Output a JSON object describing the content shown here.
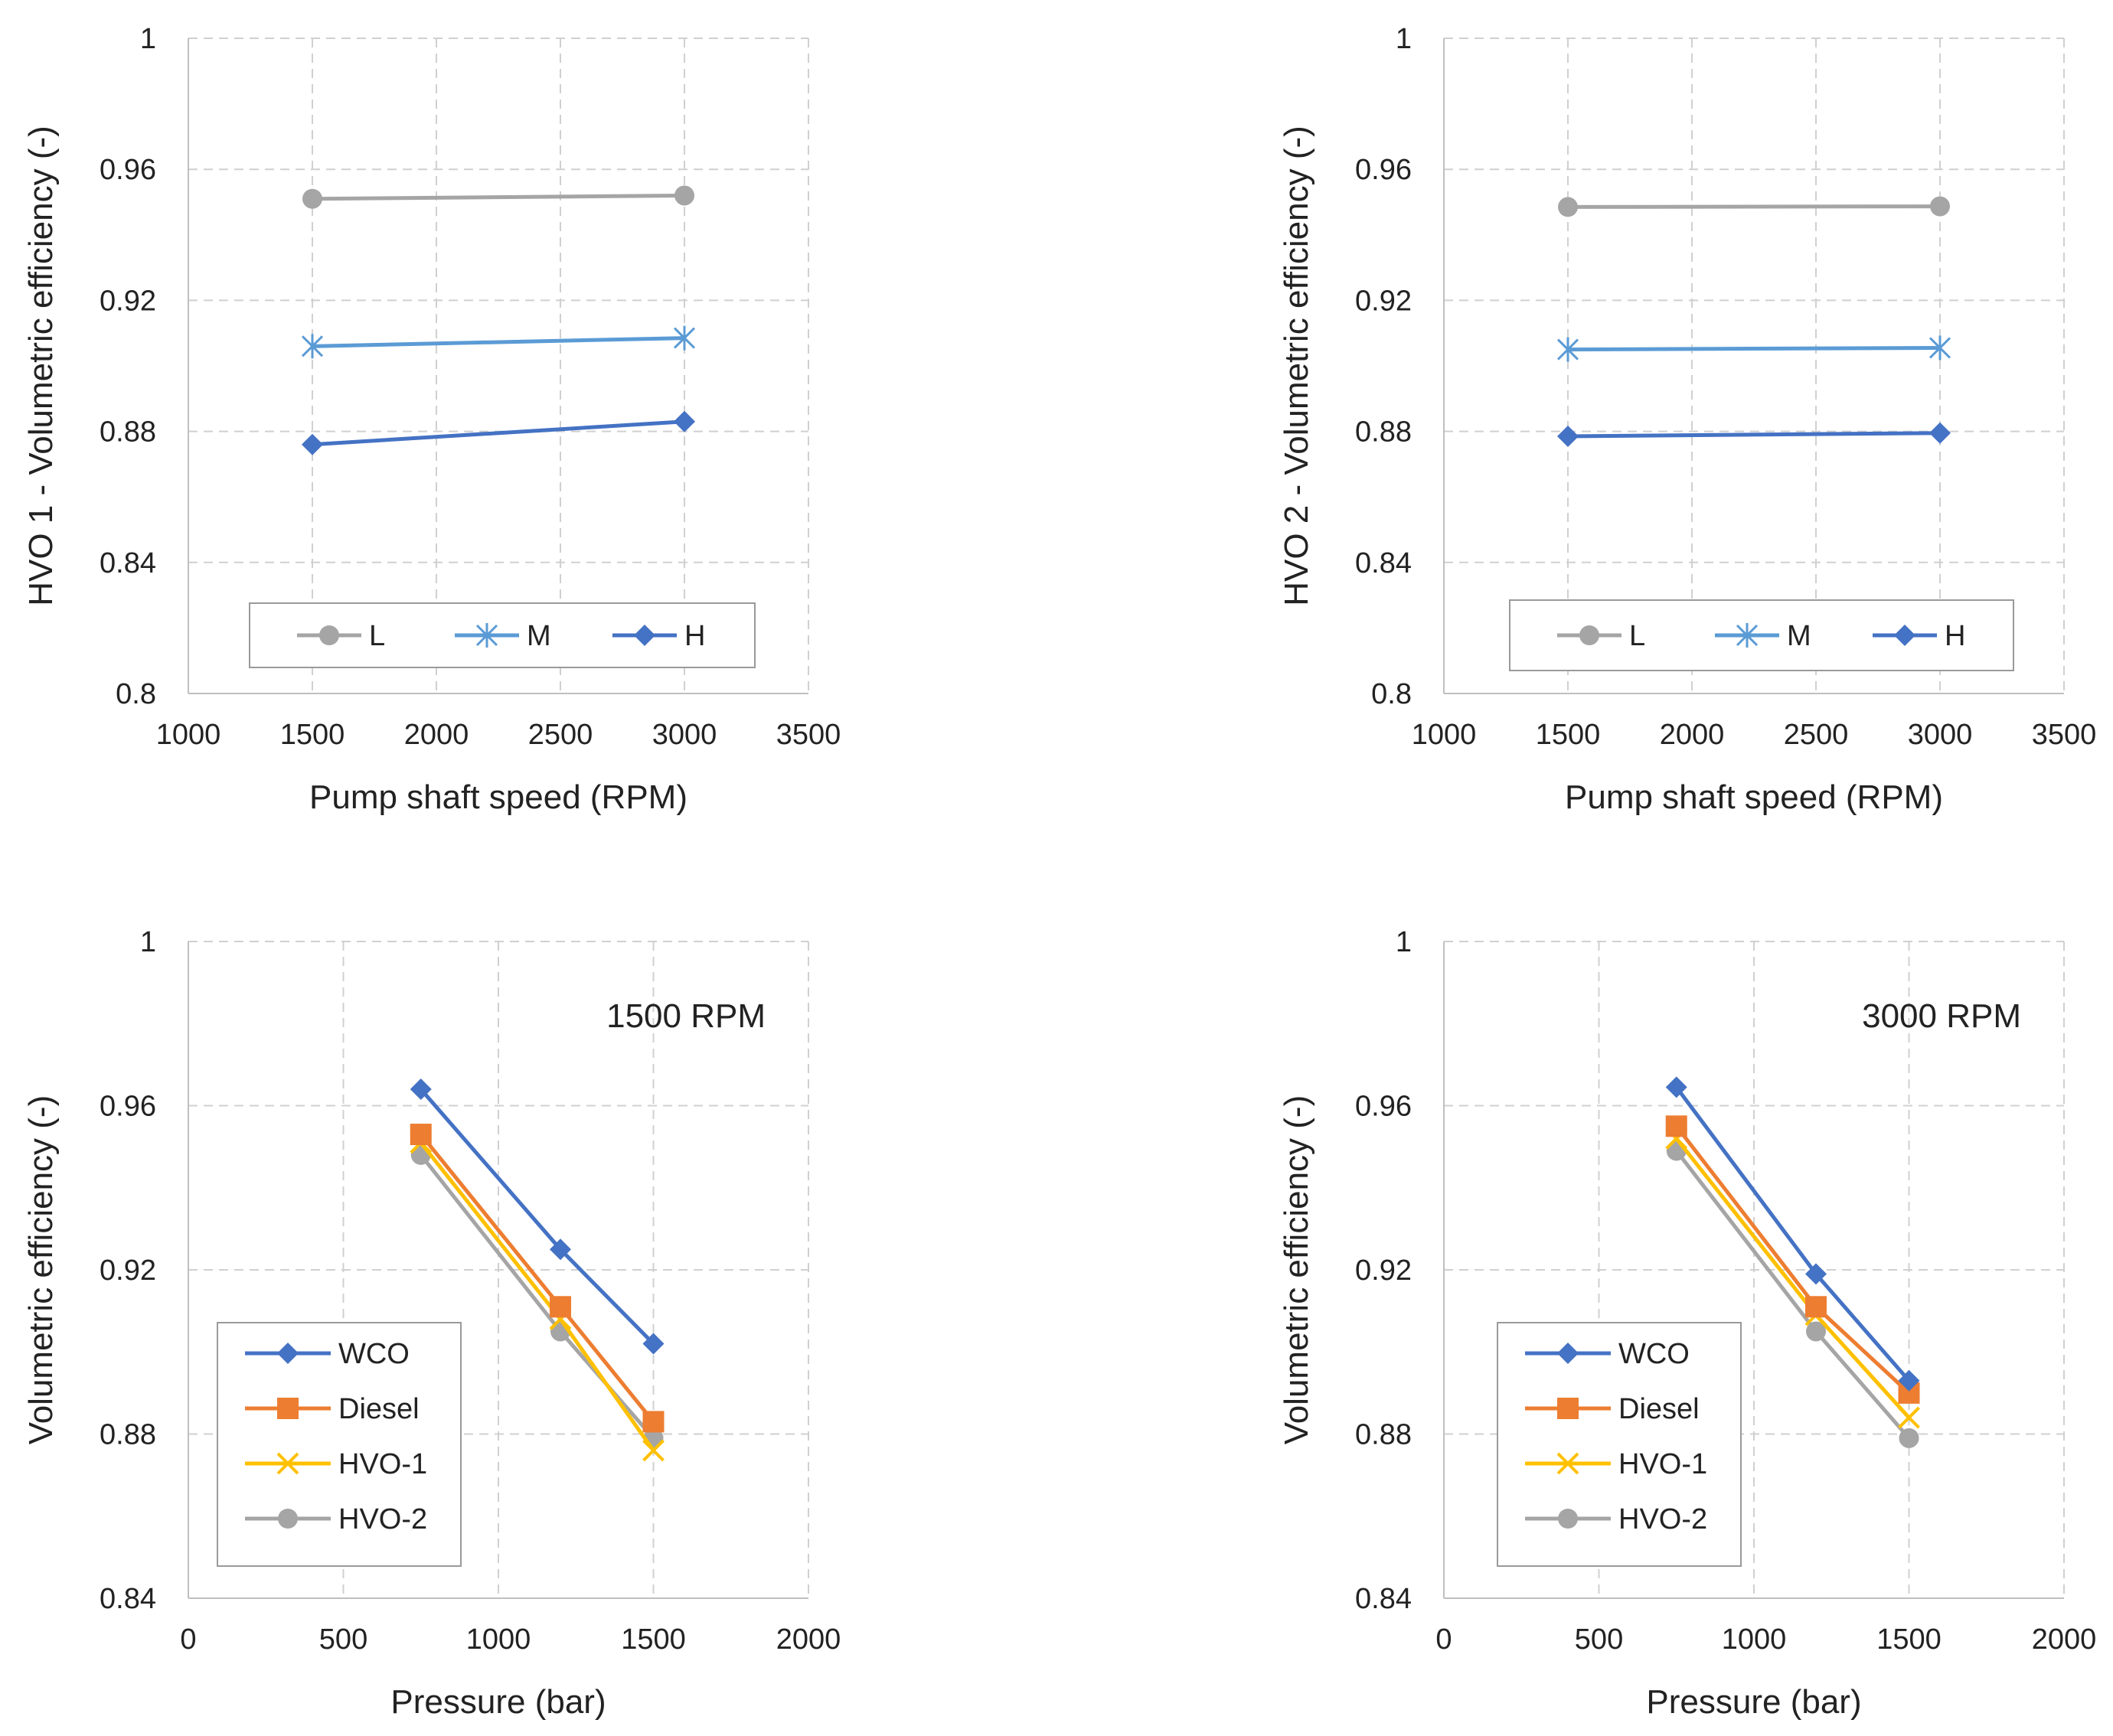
{
  "chart_data": [
    {
      "type": "line",
      "id": "tl",
      "xlabel": "Pump shaft speed (RPM)",
      "ylabel": "HVO 1 - Volumetric efficiency (-)",
      "xlim": [
        1000,
        3500
      ],
      "ylim": [
        0.8,
        1.0
      ],
      "xticks": [
        "1000",
        "1500",
        "2000",
        "2500",
        "3000",
        "3500"
      ],
      "yticks": [
        "0.8",
        "0.84",
        "0.88",
        "0.92",
        "0.96",
        "1"
      ],
      "legend": "bottom-inside",
      "series": [
        {
          "name": "L",
          "color": "#a5a5a5",
          "marker": "circle",
          "x": [
            1500,
            3000
          ],
          "y": [
            0.951,
            0.952
          ]
        },
        {
          "name": "M",
          "color": "#5b9bd5",
          "marker": "asterisk",
          "x": [
            1500,
            3000
          ],
          "y": [
            0.906,
            0.9085
          ]
        },
        {
          "name": "H",
          "color": "#4472c4",
          "marker": "diamond",
          "x": [
            1500,
            3000
          ],
          "y": [
            0.876,
            0.883
          ]
        }
      ]
    },
    {
      "type": "line",
      "id": "tr",
      "xlabel": "Pump shaft speed (RPM)",
      "ylabel": "HVO 2 - Volumetric efficiency (-)",
      "xlim": [
        1000,
        3500
      ],
      "ylim": [
        0.8,
        1.0
      ],
      "xticks": [
        "1000",
        "1500",
        "2000",
        "2500",
        "3000",
        "3500"
      ],
      "yticks": [
        "0.8",
        "0.84",
        "0.88",
        "0.92",
        "0.96",
        "1"
      ],
      "legend": "bottom-inside",
      "series": [
        {
          "name": "L",
          "color": "#a5a5a5",
          "marker": "circle",
          "x": [
            1500,
            3000
          ],
          "y": [
            0.9485,
            0.9487
          ]
        },
        {
          "name": "M",
          "color": "#5b9bd5",
          "marker": "asterisk",
          "x": [
            1500,
            3000
          ],
          "y": [
            0.905,
            0.9055
          ]
        },
        {
          "name": "H",
          "color": "#4472c4",
          "marker": "diamond",
          "x": [
            1500,
            3000
          ],
          "y": [
            0.8785,
            0.8795
          ]
        }
      ]
    },
    {
      "type": "line",
      "id": "bl",
      "annotation": "1500 RPM",
      "xlabel": "Pressure (bar)",
      "ylabel": "Volumetric efficiency (-)",
      "xlim": [
        0,
        2000
      ],
      "ylim": [
        0.84,
        1.0
      ],
      "xticks": [
        "0",
        "500",
        "1000",
        "1500",
        "2000"
      ],
      "yticks": [
        "0.84",
        "0.88",
        "0.92",
        "0.96",
        "1"
      ],
      "legend": "left-inside",
      "series": [
        {
          "name": "WCO",
          "color": "#4472c4",
          "marker": "diamond",
          "x": [
            750,
            1200,
            1500
          ],
          "y": [
            0.964,
            0.925,
            0.902
          ]
        },
        {
          "name": "Diesel",
          "color": "#ed7d31",
          "marker": "square",
          "x": [
            750,
            1200,
            1500
          ],
          "y": [
            0.953,
            0.911,
            0.883
          ]
        },
        {
          "name": "HVO-1",
          "color": "#ffc000",
          "marker": "x",
          "x": [
            750,
            1200,
            1500
          ],
          "y": [
            0.951,
            0.908,
            0.876
          ]
        },
        {
          "name": "HVO-2",
          "color": "#a5a5a5",
          "marker": "circle",
          "x": [
            750,
            1200,
            1500
          ],
          "y": [
            0.948,
            0.905,
            0.879
          ]
        }
      ]
    },
    {
      "type": "line",
      "id": "br",
      "annotation": "3000 RPM",
      "xlabel": "Pressure (bar)",
      "ylabel": "Volumetric efficiency (-)",
      "xlim": [
        0,
        2000
      ],
      "ylim": [
        0.84,
        1.0
      ],
      "xticks": [
        "0",
        "500",
        "1000",
        "1500",
        "2000"
      ],
      "yticks": [
        "0.84",
        "0.88",
        "0.92",
        "0.96",
        "1"
      ],
      "legend": "left-inside",
      "series": [
        {
          "name": "WCO",
          "color": "#4472c4",
          "marker": "diamond",
          "x": [
            750,
            1200,
            1500
          ],
          "y": [
            0.9645,
            0.919,
            0.893
          ]
        },
        {
          "name": "Diesel",
          "color": "#ed7d31",
          "marker": "square",
          "x": [
            750,
            1200,
            1500
          ],
          "y": [
            0.955,
            0.911,
            0.89
          ]
        },
        {
          "name": "HVO-1",
          "color": "#ffc000",
          "marker": "x",
          "x": [
            750,
            1200,
            1500
          ],
          "y": [
            0.952,
            0.909,
            0.884
          ]
        },
        {
          "name": "HVO-2",
          "color": "#a5a5a5",
          "marker": "circle",
          "x": [
            750,
            1200,
            1500
          ],
          "y": [
            0.949,
            0.905,
            0.879
          ]
        }
      ]
    }
  ]
}
